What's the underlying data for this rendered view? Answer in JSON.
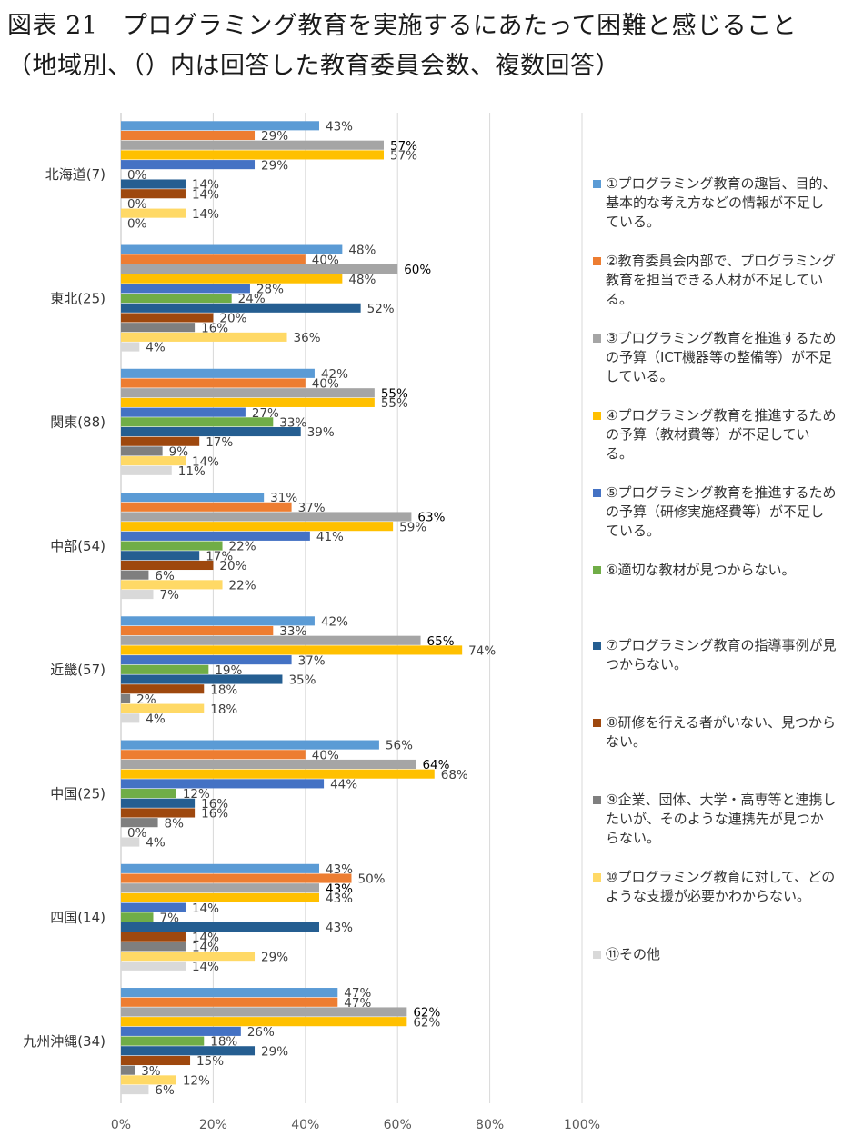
{
  "title": {
    "line1": "図表 21　プログラミング教育を実施するにあたって困難と感じること",
    "line2": "（地域別、（）内は回答した教育委員会数、複数回答）"
  },
  "chart_data": {
    "type": "bar",
    "orientation": "horizontal",
    "xlim": [
      0,
      100
    ],
    "x_ticks": [
      "0%",
      "20%",
      "40%",
      "60%",
      "80%",
      "100%"
    ],
    "grid": true,
    "legend_position": "right",
    "categories": [
      "北海道(7)",
      "東北(25)",
      "関東(88)",
      "中部(54)",
      "近畿(57)",
      "中国(25)",
      "四国(14)",
      "九州沖縄(34)"
    ],
    "series": [
      {
        "name": "①プログラミング教育の趣旨、目的、基本的な考え方などの情報が不足している。",
        "color": "#5b9bd5",
        "values": [
          43,
          48,
          42,
          31,
          42,
          56,
          43,
          47
        ]
      },
      {
        "name": "②教育委員会内部で、プログラミング教育を担当できる人材が不足している。",
        "color": "#ed7d31",
        "values": [
          29,
          40,
          40,
          37,
          33,
          40,
          50,
          47
        ]
      },
      {
        "name": "③プログラミング教育を推進するための予算（ICT機器等の整備等）が不足している。",
        "color": "#a5a5a5",
        "values": [
          57,
          60,
          55,
          63,
          65,
          64,
          43,
          62
        ]
      },
      {
        "name": "④プログラミング教育を推進するための予算（教材費等）が不足している。",
        "color": "#ffc000",
        "values": [
          57,
          48,
          55,
          59,
          74,
          68,
          43,
          62
        ]
      },
      {
        "name": "⑤プログラミング教育を推進するための予算（研修実施経費等）が不足している。",
        "color": "#4472c4",
        "values": [
          29,
          28,
          27,
          41,
          37,
          44,
          14,
          26
        ]
      },
      {
        "name": "⑥適切な教材が見つからない。",
        "color": "#70ad47",
        "values": [
          0,
          24,
          33,
          22,
          19,
          12,
          7,
          18
        ]
      },
      {
        "name": "⑦プログラミング教育の指導事例が見つからない。",
        "color": "#255e91",
        "values": [
          14,
          52,
          39,
          17,
          35,
          16,
          43,
          29
        ]
      },
      {
        "name": "⑧研修を行える者がいない、見つからない。",
        "color": "#9e480e",
        "values": [
          14,
          20,
          17,
          20,
          18,
          16,
          14,
          15
        ]
      },
      {
        "name": "⑨企業、団体、大学・高専等と連携したいが、そのような連携先が見つからない。",
        "color": "#7f7f7f",
        "values": [
          0,
          16,
          9,
          6,
          2,
          8,
          14,
          3
        ]
      },
      {
        "name": "⑩プログラミング教育に対して、どのような支援が必要かわからない。",
        "color": "#ffd966",
        "values": [
          14,
          36,
          14,
          22,
          18,
          0,
          29,
          12
        ]
      },
      {
        "name": "⑪その他",
        "color": "#d9d9d9",
        "values": [
          0,
          4,
          11,
          7,
          4,
          4,
          14,
          6
        ]
      }
    ]
  }
}
